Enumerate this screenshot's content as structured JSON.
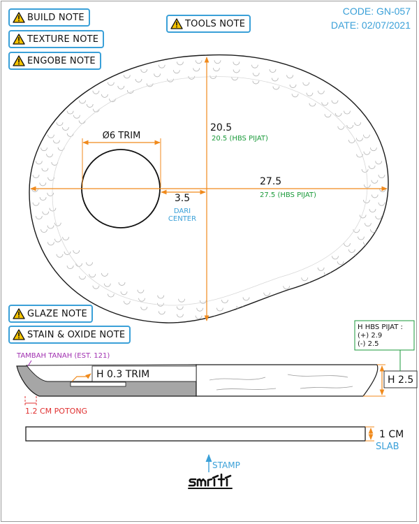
{
  "header": {
    "code": "CODE: GN-057",
    "date": "DATE: 02/07/2021"
  },
  "notes": {
    "build": "BUILD NOTE",
    "texture": "TEXTURE NOTE",
    "engobe": "ENGOBE NOTE",
    "tools": "TOOLS NOTE",
    "glaze": "GLAZE NOTE",
    "stain": "STAIN & OXIDE NOTE"
  },
  "top_view": {
    "hole_label": "Ø6 TRIM",
    "height_dim": "20.5",
    "height_hbs": "20.5 (HBS PIJAT)",
    "width_dim": "27.5",
    "width_hbs": "27.5 (HBS PIJAT)",
    "offset_dim": "3.5",
    "offset_note_1": "DARI",
    "offset_note_2": "CENTER"
  },
  "section_view": {
    "tambah": "TAMBAH TANAH (EST. 121)",
    "trim": "H 0.3 TRIM",
    "potong": "1.2 CM POTONG",
    "height": "H 2.5",
    "hbs_title": "H HBS PIJAT :",
    "hbs_plus": "(+) 2.9",
    "hbs_minus": "(-) 2.5"
  },
  "slab": {
    "thickness": "1 CM",
    "label": "SLAB"
  },
  "stamp": {
    "label": "STAMP",
    "logo": "smriti"
  },
  "colors": {
    "dimension": "#f08a1c",
    "hbs_green": "#1a9a3a",
    "accent_blue": "#3aa0d8",
    "potong_red": "#e03030",
    "tambah_purple": "#a030b0",
    "section_fill": "#a6a6a6"
  },
  "icons": [
    "warning-icon",
    "arrow-up-icon"
  ]
}
